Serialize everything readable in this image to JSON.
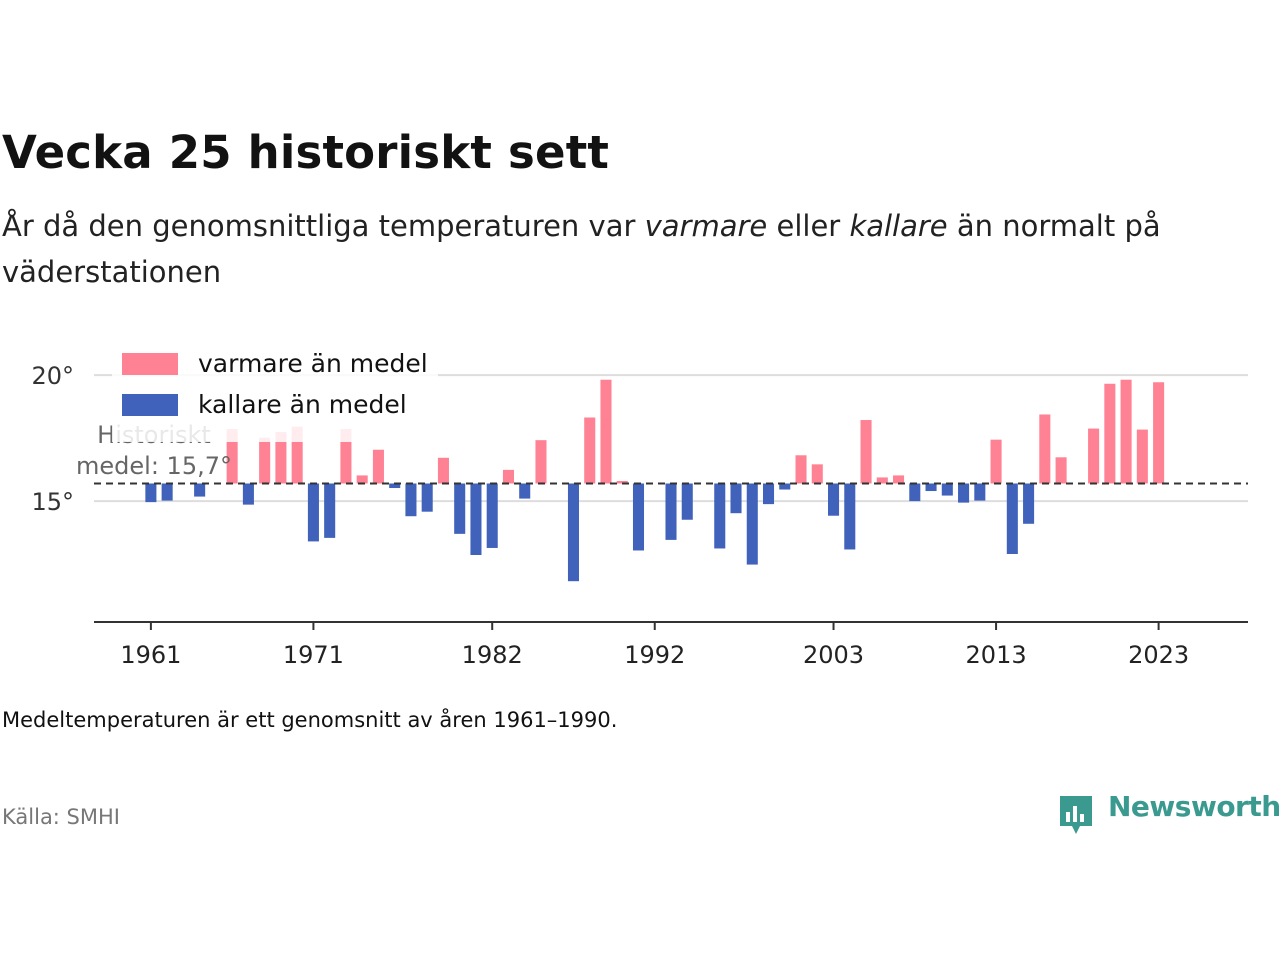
{
  "title": "Vecka 25 historiskt sett",
  "subtitle": {
    "before": "År då den genomsnittliga temperaturen var ",
    "warm_word": "varmare",
    "middle": " eller ",
    "cold_word": "kallare",
    "after": " än normalt på väderstationen"
  },
  "note": "Medeltemperaturen är ett genomsnitt av åren 1961–1990.",
  "source": "Källa: SMHI",
  "brand": "Newsworthy",
  "colors": {
    "warm": "#ff8294",
    "cold": "#4062bb",
    "brand": "#3a9a8f",
    "grid": "#dddddd",
    "axis": "#333333"
  },
  "chart_data": {
    "type": "bar",
    "baseline": 15.7,
    "baseline_label_line1": "Historiskt",
    "baseline_label_line2": "medel: 15,7°",
    "legend": {
      "warm": "varmare än medel",
      "cold": "kallare än medel",
      "position": "top-left"
    },
    "y_ticks": [
      {
        "value": 15,
        "label": "15°"
      },
      {
        "value": 20,
        "label": "20°"
      }
    ],
    "x_ticks": [
      {
        "value": 1961,
        "label": "1961"
      },
      {
        "value": 1971,
        "label": "1971"
      },
      {
        "value": 1982,
        "label": "1982"
      },
      {
        "value": 1992,
        "label": "1992"
      },
      {
        "value": 2003,
        "label": "2003"
      },
      {
        "value": 2013,
        "label": "2013"
      },
      {
        "value": 2023,
        "label": "2023"
      }
    ],
    "ylim": [
      10.2,
      21
    ],
    "xlim": [
      1957.5,
      2028.5
    ],
    "grid": true,
    "years": [
      1961,
      1962,
      1963,
      1964,
      1965,
      1966,
      1967,
      1968,
      1969,
      1970,
      1971,
      1972,
      1973,
      1974,
      1975,
      1976,
      1977,
      1978,
      1979,
      1980,
      1981,
      1982,
      1983,
      1984,
      1985,
      1986,
      1987,
      1988,
      1989,
      1990,
      1991,
      1992,
      1993,
      1994,
      1995,
      1996,
      1997,
      1998,
      1999,
      2000,
      2001,
      2002,
      2003,
      2004,
      2005,
      2006,
      2007,
      2008,
      2009,
      2010,
      2011,
      2012,
      2013,
      2014,
      2015,
      2016,
      2017,
      2018,
      2019,
      2020,
      2021,
      2022,
      2023
    ],
    "values": [
      14.96,
      15.02,
      15.7,
      15.18,
      15.7,
      17.86,
      14.86,
      17.52,
      17.74,
      17.96,
      13.4,
      13.54,
      17.86,
      16.02,
      17.04,
      15.52,
      14.4,
      14.58,
      16.72,
      13.7,
      12.86,
      13.14,
      16.24,
      15.1,
      17.42,
      15.7,
      11.82,
      18.32,
      19.82,
      15.8,
      13.04,
      15.7,
      13.46,
      14.26,
      15.7,
      13.12,
      14.52,
      12.48,
      14.88,
      15.46,
      16.82,
      16.46,
      14.42,
      13.08,
      18.22,
      15.94,
      16.02,
      15.0,
      15.4,
      15.22,
      14.94,
      15.02,
      17.44,
      12.9,
      14.1,
      18.44,
      16.74,
      15.7,
      17.88,
      19.66,
      19.82,
      17.84,
      19.72
    ]
  }
}
